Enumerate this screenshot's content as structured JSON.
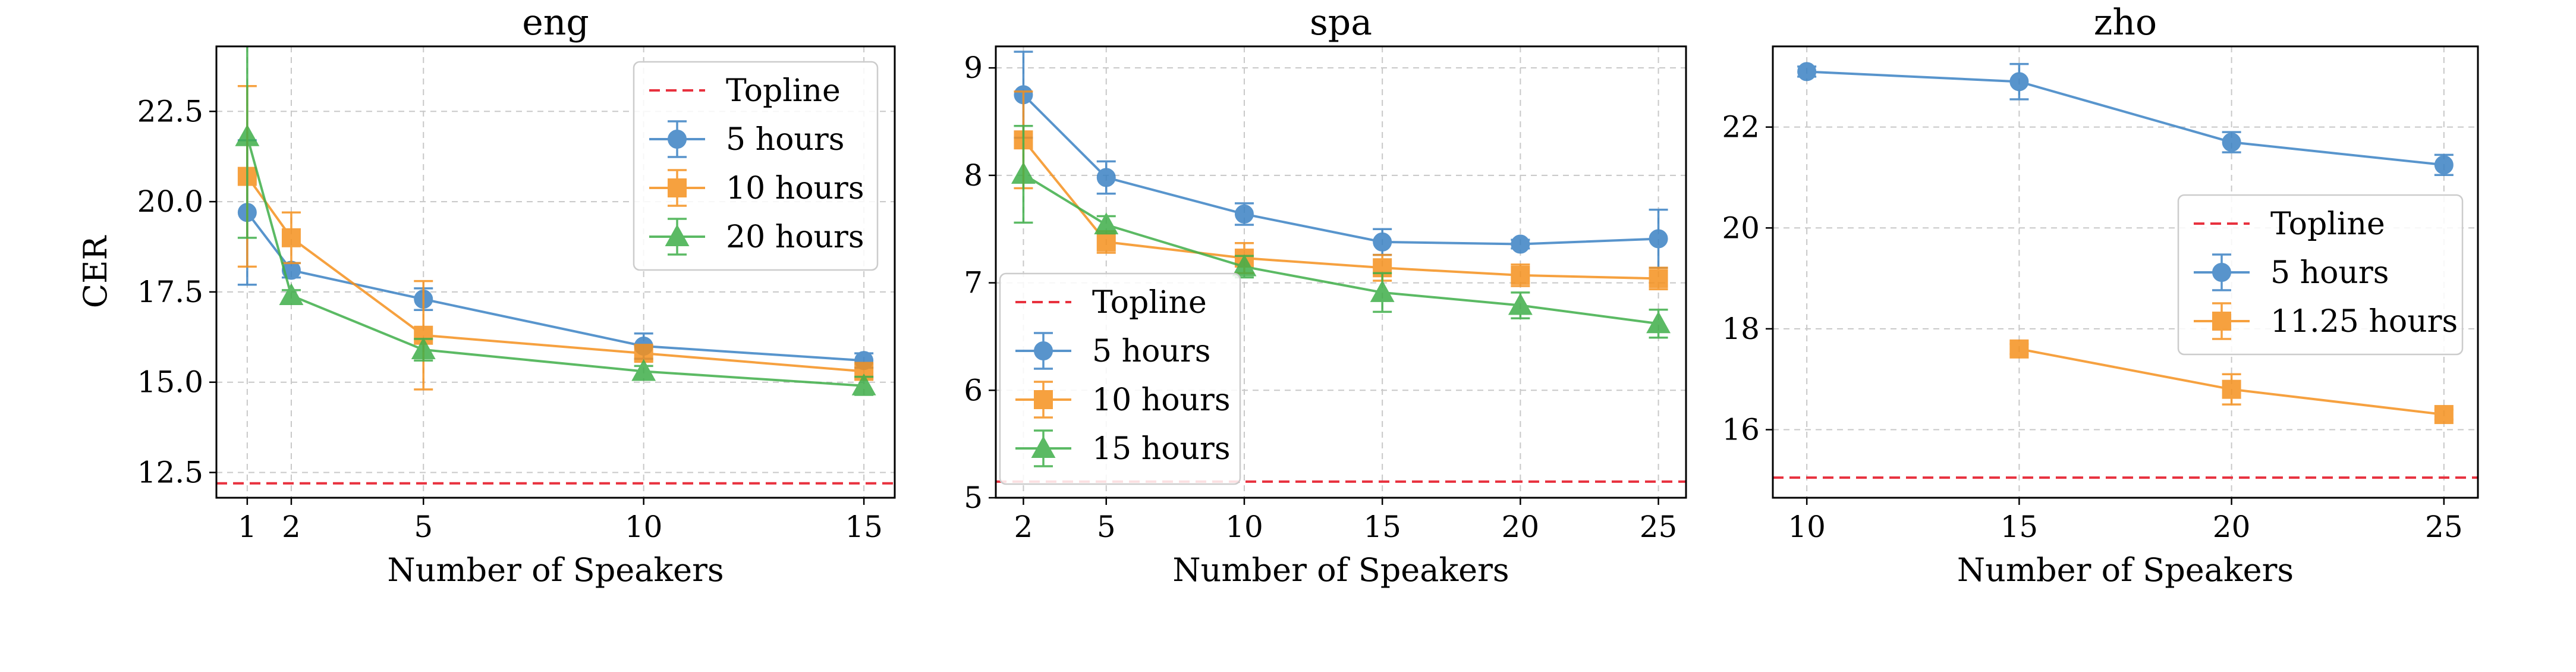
{
  "chart_data": [
    {
      "type": "line",
      "title": "eng",
      "xlabel": "Number of Speakers",
      "ylabel": "CER",
      "xlim": [
        0.3,
        15.7
      ],
      "ylim": [
        11.8,
        24.3
      ],
      "xticks": [
        1,
        2,
        5,
        10,
        15
      ],
      "yticks": [
        12.5,
        15.0,
        17.5,
        20.0,
        22.5
      ],
      "ytick_labels": [
        "12.5",
        "15.0",
        "17.5",
        "20.0",
        "22.5"
      ],
      "grid": true,
      "legend_position": "top-right",
      "topline": {
        "name": "Topline",
        "value": 12.2,
        "color": "#e8313e"
      },
      "series": [
        {
          "name": "5 hours",
          "color": "#3b82c4",
          "marker": "circle",
          "x": [
            1,
            2,
            5,
            10,
            15
          ],
          "y": [
            19.7,
            18.1,
            17.3,
            16.0,
            15.6
          ],
          "err": [
            2.0,
            0.2,
            0.3,
            0.35,
            0.2
          ]
        },
        {
          "name": "10 hours",
          "color": "#f5911e",
          "marker": "square",
          "x": [
            1,
            2,
            5,
            10,
            15
          ],
          "y": [
            20.7,
            19.0,
            16.3,
            15.8,
            15.3
          ],
          "err": [
            2.5,
            0.7,
            1.5,
            0.2,
            0.2
          ]
        },
        {
          "name": "20 hours",
          "color": "#3fae49",
          "marker": "triangle",
          "x": [
            1,
            2,
            5,
            10,
            15
          ],
          "y": [
            21.8,
            17.4,
            15.9,
            15.3,
            14.9
          ],
          "err": [
            2.8,
            0.15,
            0.3,
            0.15,
            0.25
          ]
        }
      ]
    },
    {
      "type": "line",
      "title": "spa",
      "xlabel": "Number of Speakers",
      "ylabel": "",
      "xlim": [
        1.0,
        26.0
      ],
      "ylim": [
        5.0,
        9.2
      ],
      "xticks": [
        2,
        5,
        10,
        15,
        20,
        25
      ],
      "yticks": [
        5,
        6,
        7,
        8,
        9
      ],
      "ytick_labels": [
        "5",
        "6",
        "7",
        "8",
        "9"
      ],
      "grid": true,
      "legend_position": "bottom-left",
      "topline": {
        "name": "Topline",
        "value": 5.15,
        "color": "#e8313e"
      },
      "series": [
        {
          "name": "5 hours",
          "color": "#3b82c4",
          "marker": "circle",
          "x": [
            2,
            5,
            10,
            15,
            20,
            25
          ],
          "y": [
            8.75,
            7.98,
            7.64,
            7.38,
            7.36,
            7.41
          ],
          "err": [
            0.4,
            0.15,
            0.1,
            0.12,
            0.04,
            0.27
          ]
        },
        {
          "name": "10 hours",
          "color": "#f5911e",
          "marker": "square",
          "x": [
            2,
            5,
            10,
            15,
            20,
            25
          ],
          "y": [
            8.33,
            7.38,
            7.23,
            7.14,
            7.07,
            7.04
          ],
          "err": [
            0.45,
            0.1,
            0.14,
            0.12,
            0.1,
            0.1
          ]
        },
        {
          "name": "15 hours",
          "color": "#3fae49",
          "marker": "triangle",
          "x": [
            2,
            5,
            10,
            15,
            20,
            25
          ],
          "y": [
            8.01,
            7.54,
            7.15,
            6.91,
            6.79,
            6.62
          ],
          "err": [
            0.45,
            0.08,
            0.1,
            0.18,
            0.12,
            0.13
          ]
        }
      ]
    },
    {
      "type": "line",
      "title": "zho",
      "xlabel": "Number of Speakers",
      "ylabel": "",
      "xlim": [
        9.2,
        25.8
      ],
      "ylim": [
        14.65,
        23.6
      ],
      "xticks": [
        10,
        15,
        20,
        25
      ],
      "yticks": [
        16,
        18,
        20,
        22
      ],
      "ytick_labels": [
        "16",
        "18",
        "20",
        "22"
      ],
      "grid": true,
      "legend_position": "center-right",
      "topline": {
        "name": "Topline",
        "value": 15.05,
        "color": "#e8313e"
      },
      "series": [
        {
          "name": "5 hours",
          "color": "#3b82c4",
          "marker": "circle",
          "x": [
            10,
            15,
            20,
            25
          ],
          "y": [
            23.1,
            22.9,
            21.7,
            21.25
          ],
          "err": [
            0.1,
            0.35,
            0.2,
            0.2
          ]
        },
        {
          "name": "11.25 hours",
          "color": "#f5911e",
          "marker": "square",
          "x": [
            15,
            20,
            25
          ],
          "y": [
            17.6,
            16.8,
            16.3
          ],
          "err": [
            0.1,
            0.3,
            0.1
          ]
        }
      ]
    }
  ]
}
